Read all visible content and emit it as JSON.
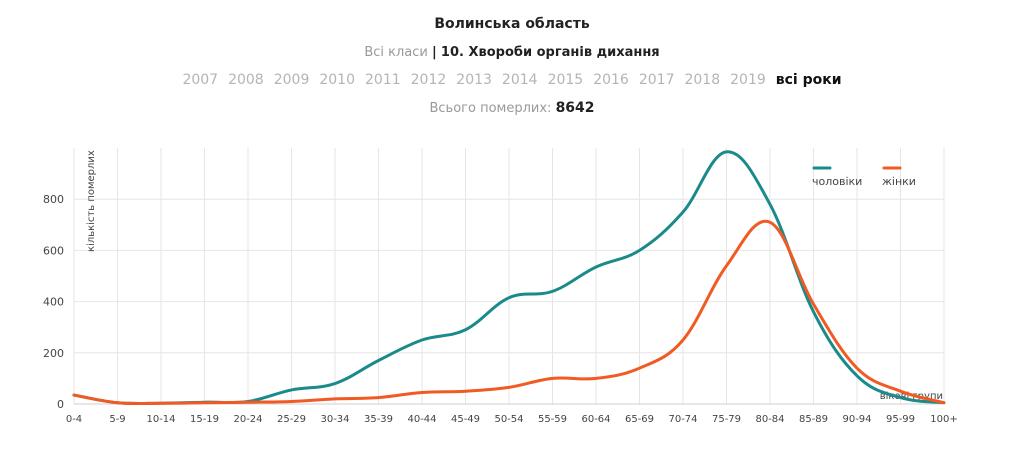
{
  "header": {
    "region": "Волинська область",
    "class_all": "Всі класи",
    "class_sep": "|",
    "class_selected": "10. Хвороби органів дихання",
    "total_label": "Всього померлих:",
    "total_value": "8642"
  },
  "years": [
    "2007",
    "2008",
    "2009",
    "2010",
    "2011",
    "2012",
    "2013",
    "2014",
    "2015",
    "2016",
    "2017",
    "2018",
    "2019",
    "всі роки"
  ],
  "active_year": "всі роки",
  "colors": {
    "men": "#1a8a8a",
    "women": "#f15a22",
    "grid": "#e6e6e6"
  },
  "chart_data": {
    "type": "line",
    "ylabel": "кількість померлих",
    "xlabel": "вікові групи",
    "ylim": [
      0,
      1000
    ],
    "yticks": [
      0,
      200,
      400,
      600,
      800
    ],
    "categories": [
      "0-4",
      "5-9",
      "10-14",
      "15-19",
      "20-24",
      "25-29",
      "30-34",
      "35-39",
      "40-44",
      "45-49",
      "50-54",
      "55-59",
      "60-64",
      "65-69",
      "70-74",
      "75-79",
      "80-84",
      "85-89",
      "90-94",
      "95-99",
      "100+"
    ],
    "series": [
      {
        "name": "чоловіки",
        "values": [
          35,
          5,
          3,
          7,
          10,
          55,
          80,
          170,
          250,
          290,
          415,
          440,
          535,
          600,
          750,
          985,
          780,
          360,
          110,
          25,
          5
        ]
      },
      {
        "name": "жінки",
        "values": [
          35,
          5,
          3,
          5,
          7,
          10,
          20,
          25,
          45,
          50,
          65,
          100,
          100,
          140,
          250,
          540,
          710,
          390,
          140,
          50,
          5
        ]
      }
    ],
    "legend": "top-right"
  }
}
